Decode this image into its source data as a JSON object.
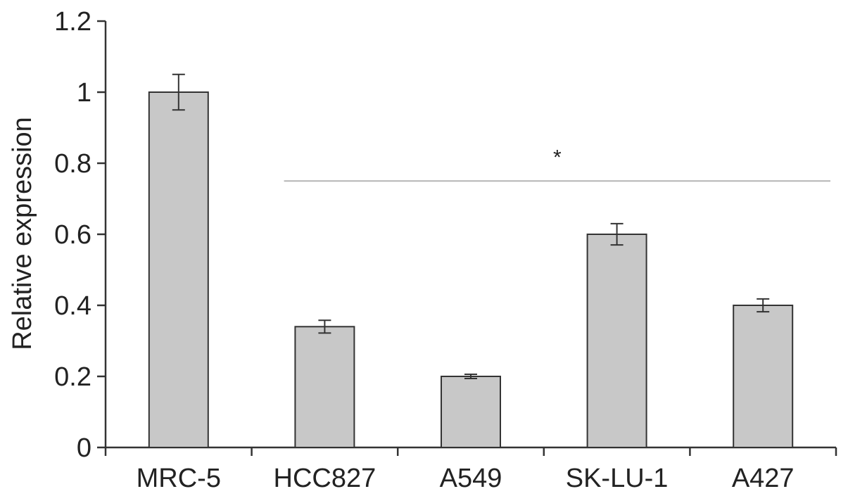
{
  "chart_data": {
    "type": "bar",
    "title": "",
    "xlabel": "",
    "ylabel": "Relative expression",
    "ylim": [
      0,
      1.2
    ],
    "yticks": [
      "0",
      "0.2",
      "0.4",
      "0.6",
      "0.8",
      "1",
      "1.2"
    ],
    "ytick_values": [
      0,
      0.2,
      0.4,
      0.6,
      0.8,
      1.0,
      1.2
    ],
    "grid": false,
    "categories": [
      "MRC-5",
      "HCC827",
      "A549",
      "SK-LU-1",
      "A427"
    ],
    "values": [
      1.0,
      0.34,
      0.2,
      0.6,
      0.4
    ],
    "errors": [
      0.05,
      0.018,
      0.006,
      0.03,
      0.018
    ],
    "bar_color": "#c8c8c8",
    "bar_edge_color": "#333333",
    "significance": {
      "label": "*",
      "y": 0.75,
      "from_category": "HCC827",
      "to_category": "A427",
      "line_color": "#b5b5b5"
    }
  }
}
